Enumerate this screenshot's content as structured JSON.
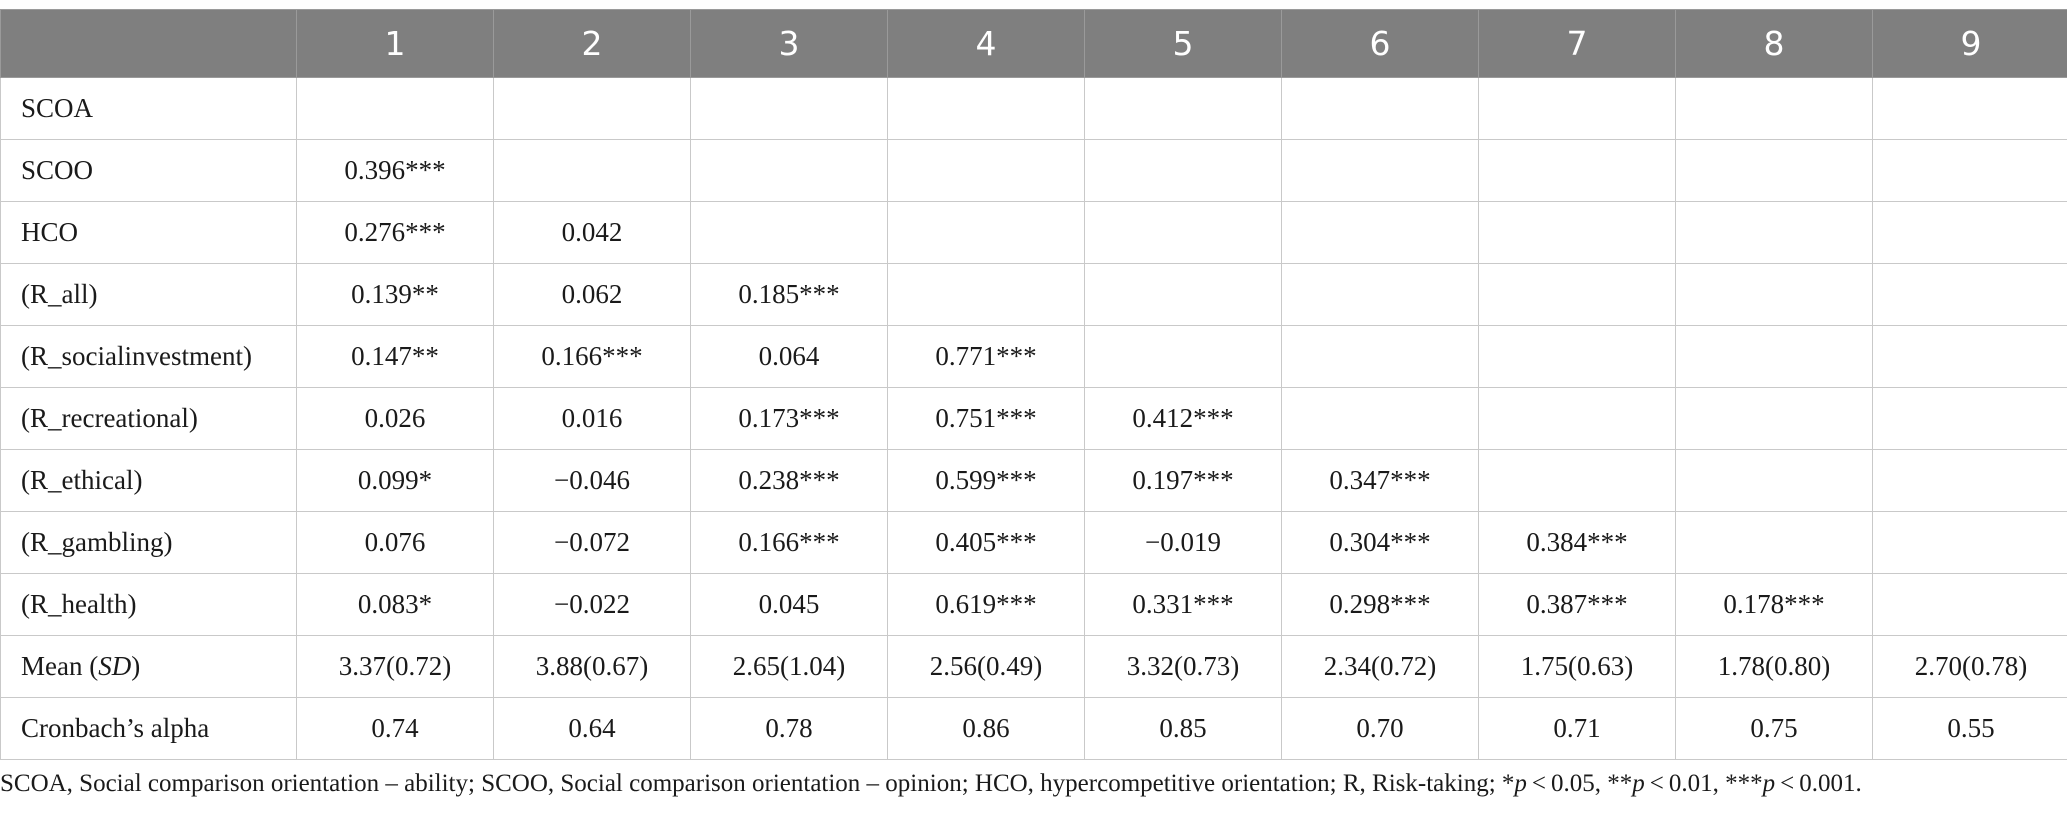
{
  "table": {
    "header": [
      "",
      "1",
      "2",
      "3",
      "4",
      "5",
      "6",
      "7",
      "8",
      "9"
    ],
    "rows": [
      {
        "label": "SCOA",
        "cells": [
          "",
          "",
          "",
          "",
          "",
          "",
          "",
          "",
          ""
        ]
      },
      {
        "label": "SCOO",
        "cells": [
          "0.396***",
          "",
          "",
          "",
          "",
          "",
          "",
          "",
          ""
        ]
      },
      {
        "label": "HCO",
        "cells": [
          "0.276***",
          "0.042",
          "",
          "",
          "",
          "",
          "",
          "",
          ""
        ]
      },
      {
        "label": "(R_all)",
        "cells": [
          "0.139**",
          "0.062",
          "0.185***",
          "",
          "",
          "",
          "",
          "",
          ""
        ]
      },
      {
        "label": "(R_socialinvestment)",
        "cells": [
          "0.147**",
          "0.166***",
          "0.064",
          "0.771***",
          "",
          "",
          "",
          "",
          ""
        ]
      },
      {
        "label": "(R_recreational)",
        "cells": [
          "0.026",
          "0.016",
          "0.173***",
          "0.751***",
          "0.412***",
          "",
          "",
          "",
          ""
        ]
      },
      {
        "label": "(R_ethical)",
        "cells": [
          "0.099*",
          "−0.046",
          "0.238***",
          "0.599***",
          "0.197***",
          "0.347***",
          "",
          "",
          ""
        ]
      },
      {
        "label": "(R_gambling)",
        "cells": [
          "0.076",
          "−0.072",
          "0.166***",
          "0.405***",
          "−0.019",
          "0.304***",
          "0.384***",
          "",
          ""
        ]
      },
      {
        "label": "(R_health)",
        "cells": [
          "0.083*",
          "−0.022",
          "0.045",
          "0.619***",
          "0.331***",
          "0.298***",
          "0.387***",
          "0.178***",
          ""
        ]
      },
      {
        "label": "Mean (",
        "label_italic": "SD",
        "label_suffix": ")",
        "cells": [
          "3.37(0.72)",
          "3.88(0.67)",
          "2.65(1.04)",
          "2.56(0.49)",
          "3.32(0.73)",
          "2.34(0.72)",
          "1.75(0.63)",
          "1.78(0.80)",
          "2.70(0.78)"
        ]
      },
      {
        "label": "Cronbach’s alpha",
        "cells": [
          "0.74",
          "0.64",
          "0.78",
          "0.86",
          "0.85",
          "0.70",
          "0.71",
          "0.75",
          "0.55"
        ]
      }
    ]
  },
  "note": {
    "text": "SCOA, Social comparison orientation – ability; SCOO, Social comparison orientation – opinion; HCO, hypercompetitive orientation; R, Risk-taking; *",
    "p1": "p",
    "t1": " < 0.05, **",
    "p2": "p",
    "t2": " < 0.01, ***",
    "p3": "p",
    "t3": " < 0.001."
  }
}
